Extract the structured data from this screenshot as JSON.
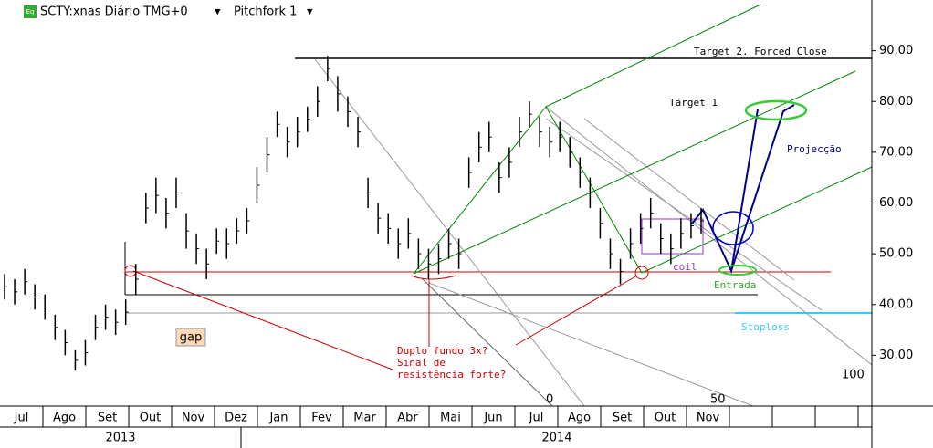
{
  "chart_data": {
    "type": "ohlc",
    "title": "SCTY:xnas Diário TMG+0",
    "subtitle": "Pitchfork 1",
    "badge": "Eq",
    "months": [
      "Jul",
      "Ago",
      "Set",
      "Out",
      "Nov",
      "Dez",
      "Jan",
      "Fev",
      "Mar",
      "Abr",
      "Mai",
      "Jun",
      "Jul",
      "Ago",
      "Set",
      "Out",
      "Nov"
    ],
    "years": [
      "2013",
      "2014"
    ],
    "high": [
      46,
      45,
      47,
      44,
      42,
      38,
      35,
      31,
      33,
      38,
      40,
      39,
      41,
      48,
      62,
      65,
      61,
      65,
      58,
      54,
      51,
      55,
      55,
      57,
      59,
      67,
      73,
      78,
      75,
      77,
      79,
      83,
      89,
      85,
      81,
      77,
      65,
      60,
      58,
      55,
      57,
      53,
      51,
      52,
      55,
      53,
      69,
      74,
      76,
      68,
      71,
      77,
      80,
      77,
      75,
      76,
      73,
      69,
      65,
      59,
      53,
      49,
      55,
      58,
      61,
      56,
      54,
      57,
      58,
      59
    ],
    "low": [
      41,
      40,
      42,
      39,
      37,
      33,
      30,
      27,
      28,
      33,
      35,
      34,
      36,
      42,
      56,
      58,
      55,
      59,
      51,
      48,
      45,
      50,
      49,
      52,
      54,
      60,
      66,
      73,
      69,
      71,
      74,
      77,
      84,
      78,
      75,
      71,
      59,
      54,
      52,
      49,
      51,
      47,
      45,
      46,
      49,
      47,
      63,
      68,
      70,
      62,
      65,
      71,
      75,
      71,
      69,
      70,
      67,
      63,
      59,
      53,
      47,
      44,
      49,
      52,
      55,
      50,
      48,
      51,
      53,
      54
    ],
    "ylim": [
      20,
      100
    ],
    "yticks": [
      {
        "value": 90,
        "label": "90,00"
      },
      {
        "value": 80,
        "label": "80,00"
      },
      {
        "value": 70,
        "label": "70,00"
      },
      {
        "value": 60,
        "label": "60,00"
      },
      {
        "value": 50,
        "label": "50,00"
      },
      {
        "value": 40,
        "label": "40,00"
      },
      {
        "value": 30,
        "label": "30,00"
      }
    ],
    "annotations": {
      "target2": "Target 2. Forced Close",
      "target1": "Target 1",
      "projection": "Projecção",
      "coil": "coil",
      "entry": "Entrada",
      "stoploss": "Stoploss",
      "gap": "gap",
      "note": [
        "Duplo fundo 3x?",
        "Sinal de",
        "resistência forte?"
      ],
      "fork0": "0",
      "fork50": "50",
      "fork100": "100"
    },
    "bar_color": "#000000"
  }
}
